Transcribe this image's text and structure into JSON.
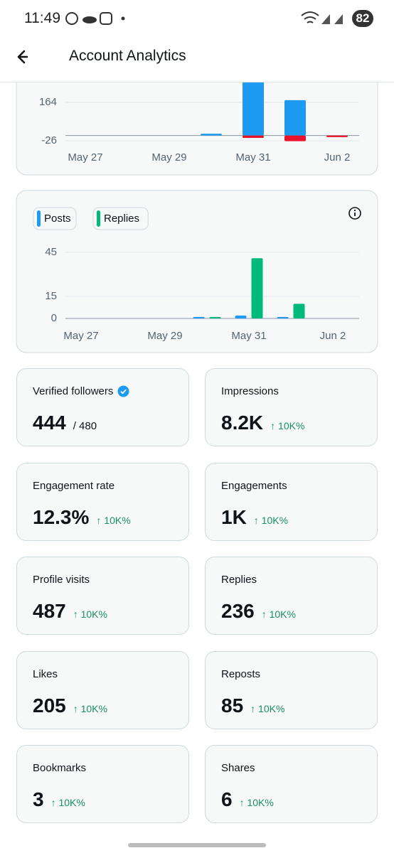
{
  "status_bar": {
    "time": "11:49",
    "battery": "82"
  },
  "header": {
    "title": "Account Analytics"
  },
  "chart_data": [
    {
      "type": "bar",
      "categories": [
        "May 27",
        null,
        "May 29",
        null,
        "May 31",
        null,
        "Jun 2"
      ],
      "series": [
        {
          "color": "#1d9bf0",
          "values": [
            0,
            0,
            0,
            9,
            270,
            175,
            0
          ]
        },
        {
          "color": "#e8132b",
          "values": [
            0,
            0,
            0,
            0,
            -12,
            -28,
            -8
          ]
        }
      ],
      "ylim": [
        -40,
        300
      ],
      "yticks": [
        -26,
        164
      ],
      "grid": true
    },
    {
      "type": "bar",
      "categories": [
        "May 27",
        null,
        "May 29",
        null,
        "May 31",
        null,
        "Jun 2"
      ],
      "series": [
        {
          "name": "Posts",
          "color": "#1d9bf0",
          "values": [
            0,
            0,
            0,
            1,
            2,
            1,
            0
          ]
        },
        {
          "name": "Replies",
          "color": "#00ba7c",
          "values": [
            0,
            0,
            0,
            1,
            41,
            10,
            0
          ]
        }
      ],
      "ylim": [
        0,
        45
      ],
      "yticks": [
        0,
        15,
        45
      ],
      "grid": true
    }
  ],
  "cards": [
    {
      "label": "Verified followers",
      "value": "444",
      "sub": "/ 480",
      "verified": true
    },
    {
      "label": "Impressions",
      "value": "8.2K",
      "change": "↑ 10K%"
    },
    {
      "label": "Engagement rate",
      "value": "12.3%",
      "change": "↑ 10K%"
    },
    {
      "label": "Engagements",
      "value": "1K",
      "change": "↑ 10K%"
    },
    {
      "label": "Profile visits",
      "value": "487",
      "change": "↑ 10K%"
    },
    {
      "label": "Replies",
      "value": "236",
      "change": "↑ 10K%"
    },
    {
      "label": "Likes",
      "value": "205",
      "change": "↑ 10K%"
    },
    {
      "label": "Reposts",
      "value": "85",
      "change": "↑ 10K%"
    },
    {
      "label": "Bookmarks",
      "value": "3",
      "change": "↑ 10K%"
    },
    {
      "label": "Shares",
      "value": "6",
      "change": "↑ 10K%"
    }
  ]
}
